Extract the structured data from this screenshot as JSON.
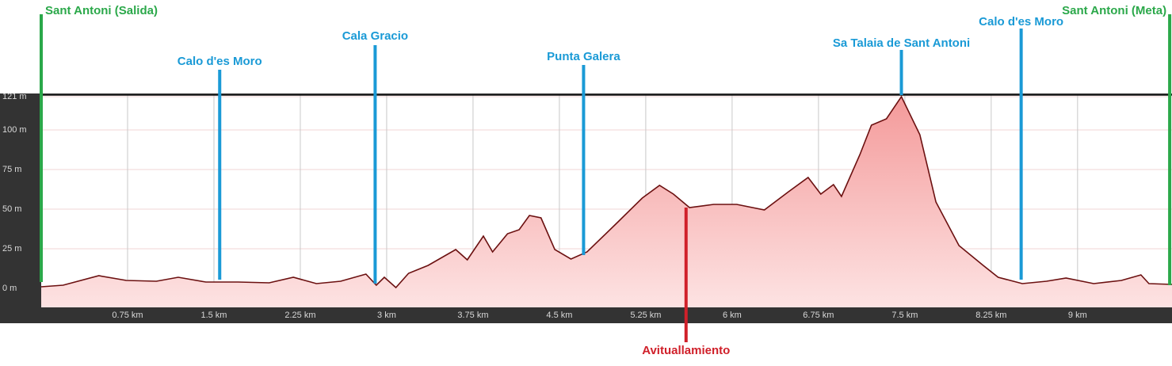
{
  "chart_data": {
    "type": "area",
    "x": [
      0,
      0.19,
      0.5,
      0.74,
      1.0,
      1.19,
      1.43,
      1.71,
      1.98,
      2.19,
      2.39,
      2.6,
      2.82,
      2.91,
      2.98,
      3.08,
      3.19,
      3.36,
      3.6,
      3.7,
      3.84,
      3.92,
      4.05,
      4.15,
      4.24,
      4.34,
      4.46,
      4.6,
      4.74,
      5.01,
      5.22,
      5.37,
      5.49,
      5.63,
      5.84,
      6.04,
      6.28,
      6.49,
      6.66,
      6.77,
      6.88,
      6.95,
      7.11,
      7.21,
      7.34,
      7.47,
      7.63,
      7.77,
      7.97,
      8.18,
      8.31,
      8.52,
      8.73,
      8.9,
      9.14,
      9.38,
      9.55,
      9.62,
      9.82
    ],
    "values": [
      1,
      2,
      8,
      5,
      4.5,
      7,
      4,
      4,
      3.5,
      7,
      3,
      4.5,
      9,
      2,
      7,
      0.5,
      9.5,
      14.5,
      24.5,
      18,
      33,
      23,
      34.5,
      37,
      46,
      44.5,
      24.5,
      18.5,
      23,
      42,
      57,
      65,
      59.5,
      51,
      53,
      53,
      49.5,
      61,
      70,
      59.5,
      65.5,
      58,
      84.5,
      103,
      107,
      121,
      97,
      54.5,
      27,
      14.5,
      7,
      3,
      4.5,
      6.5,
      3,
      5,
      8.5,
      3,
      2.5
    ],
    "color": "#6b1010",
    "fill": "#f7b0b0",
    "xlim": [
      0,
      9.82
    ],
    "ylim": [
      -12,
      122
    ],
    "xticks": [
      {
        "value": 0.75,
        "label": "0.75 km"
      },
      {
        "value": 1.5,
        "label": "1.5 km"
      },
      {
        "value": 2.25,
        "label": "2.25 km"
      },
      {
        "value": 3,
        "label": "3 km"
      },
      {
        "value": 3.75,
        "label": "3.75 km"
      },
      {
        "value": 4.5,
        "label": "4.5 km"
      },
      {
        "value": 5.25,
        "label": "5.25 km"
      },
      {
        "value": 6,
        "label": "6 km"
      },
      {
        "value": 6.75,
        "label": "6.75 km"
      },
      {
        "value": 7.5,
        "label": "7.5 km"
      },
      {
        "value": 8.25,
        "label": "8.25 km"
      },
      {
        "value": 9,
        "label": "9 km"
      }
    ],
    "yticks": [
      {
        "value": 0,
        "label": "0 m"
      },
      {
        "value": 25,
        "label": "25 m"
      },
      {
        "value": 50,
        "label": "50 m"
      },
      {
        "value": 75,
        "label": "75 m"
      },
      {
        "value": 100,
        "label": "100 m"
      },
      {
        "value": 121,
        "label": "121 m"
      }
    ],
    "grid": true,
    "markers": [
      {
        "label": "Sant Antoni (Salida)",
        "x": 0,
        "color": "#2ba84a"
      },
      {
        "label": "Calo d'es Moro",
        "x": 1.55,
        "color": "#1a9ad6"
      },
      {
        "label": "Cala Gracio",
        "x": 2.9,
        "color": "#1a9ad6"
      },
      {
        "label": "Punta Galera",
        "x": 4.71,
        "color": "#1a9ad6"
      },
      {
        "label": "Avituallamiento",
        "x": 5.6,
        "color": "#d0202a"
      },
      {
        "label": "Sa Talaia de Sant Antoni",
        "x": 7.47,
        "color": "#1a9ad6"
      },
      {
        "label": "Calo d'es Moro",
        "x": 8.51,
        "color": "#1a9ad6"
      },
      {
        "label": "Sant Antoni (Meta)",
        "x": 9.8,
        "color": "#2ba84a"
      }
    ]
  }
}
